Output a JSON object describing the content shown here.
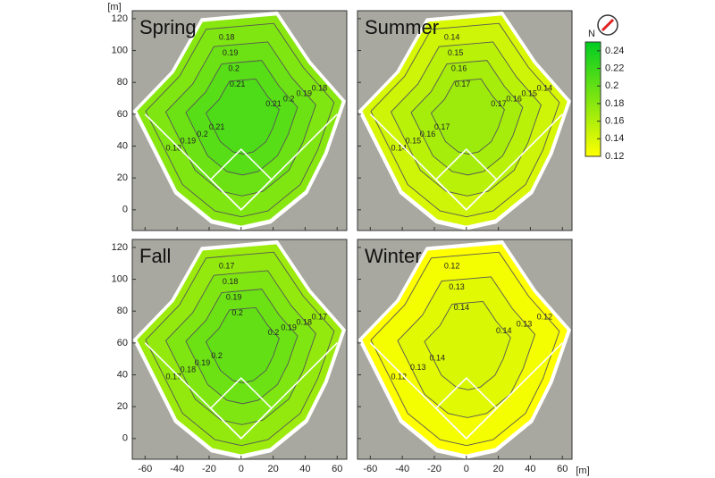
{
  "axes": {
    "unit": "[m]",
    "xlim": [
      -68,
      66
    ],
    "ylim": [
      -13,
      125
    ],
    "xticks": [
      -60,
      -40,
      -20,
      0,
      20,
      40,
      60
    ],
    "yticks": [
      0,
      20,
      40,
      60,
      80,
      100,
      120
    ]
  },
  "colorbar": {
    "lim": [
      0.12,
      0.25
    ],
    "ticks": [
      0.12,
      0.14,
      0.16,
      0.18,
      0.2,
      0.22,
      0.24
    ],
    "colors": [
      "#ffff00",
      "#00cc22"
    ]
  },
  "north_label": "N",
  "chart_data": [
    {
      "type": "contour",
      "title": "Spring",
      "levels": [
        0.18,
        0.19,
        0.2,
        0.21
      ]
    },
    {
      "type": "contour",
      "title": "Summer",
      "levels": [
        0.14,
        0.15,
        0.16,
        0.17
      ]
    },
    {
      "type": "contour",
      "title": "Fall",
      "levels": [
        0.17,
        0.18,
        0.19,
        0.2
      ]
    },
    {
      "type": "contour",
      "title": "Winter",
      "levels": [
        0.12,
        0.13,
        0.14
      ]
    }
  ]
}
